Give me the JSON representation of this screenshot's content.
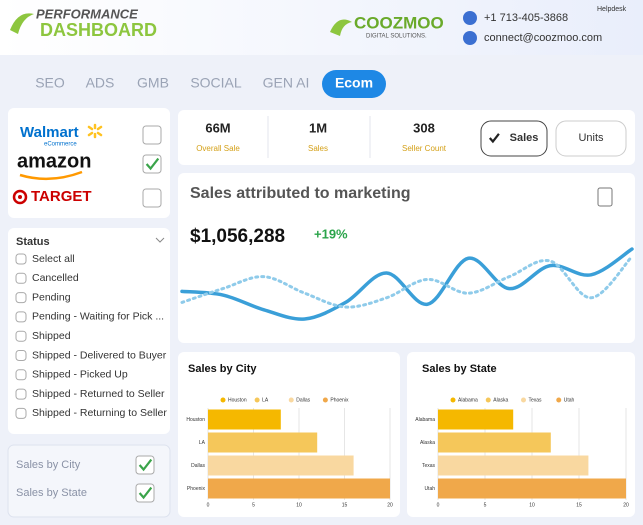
{
  "header": {
    "brand_top": "PERFORMANCE",
    "brand_bottom": "DASHBOARD",
    "company": "COOZMOO",
    "company_tagline": "DIGITAL SOLUTIONS.",
    "helpdesk": "Helpdesk",
    "phone": "+1 713-405-3868",
    "email": "connect@coozmoo.com"
  },
  "tabs": {
    "items": [
      "SEO",
      "ADS",
      "GMB",
      "SOCIAL",
      "GEN AI",
      "Ecom"
    ],
    "active": 5
  },
  "stores": [
    {
      "name": "Walmart",
      "sub": "eCommerce",
      "checked": false
    },
    {
      "name": "amazon",
      "checked": true
    },
    {
      "name": "TARGET",
      "checked": false
    }
  ],
  "status": {
    "title": "Status",
    "options": [
      "Select all",
      "Cancelled",
      "Pending",
      "Pending - Waiting for Pick ...",
      "Shipped",
      "Shipped - Delivered to Buyer",
      "Shipped - Picked Up",
      "Shipped - Returned to Seller",
      "Shipped - Returning to Seller"
    ]
  },
  "filters": [
    {
      "label": "Sales by City",
      "checked": true
    },
    {
      "label": "Sales by State",
      "checked": true
    }
  ],
  "kpis": [
    {
      "value": "66M",
      "label": "Overall Sale"
    },
    {
      "value": "1M",
      "label": "Sales"
    },
    {
      "value": "308",
      "label": "Seller Count"
    }
  ],
  "toggles": {
    "items": [
      "Sales",
      "Units"
    ],
    "active": 0
  },
  "marketing": {
    "title": "Sales attributed to marketing",
    "total": "$1,056,288",
    "change": "+19%",
    "chart": {
      "type": "line",
      "ylim": [
        0,
        100
      ],
      "series": [
        {
          "color": "#3a9fd8",
          "dashed": false,
          "values": [
            42,
            38,
            22,
            12,
            30,
            62,
            28,
            78,
            45,
            70,
            60,
            88
          ]
        },
        {
          "color": "#8fcbea",
          "dashed": true,
          "values": [
            30,
            45,
            58,
            40,
            25,
            35,
            55,
            40,
            58,
            75,
            35,
            80
          ]
        }
      ]
    }
  },
  "city_chart": {
    "type": "bar",
    "title": "Sales by City",
    "categories": [
      "Houston",
      "LA",
      "Dallas",
      "Phoenix"
    ],
    "values": [
      8,
      12,
      16,
      20
    ],
    "colors": [
      "#f5b800",
      "#f5c75a",
      "#f9d8a0",
      "#f0a84a"
    ],
    "xlim": [
      0,
      20
    ],
    "xticks": [
      0,
      5,
      10,
      15,
      20
    ],
    "grid": true
  },
  "state_chart": {
    "type": "bar",
    "title": "Sales by State",
    "categories": [
      "Alabama",
      "Alaska",
      "Texas",
      "Utah"
    ],
    "values": [
      8,
      12,
      16,
      20
    ],
    "colors": [
      "#f5b800",
      "#f5c75a",
      "#f9d8a0",
      "#f0a84a"
    ],
    "xlim": [
      0,
      20
    ],
    "xticks": [
      0,
      5,
      10,
      15,
      20
    ],
    "grid": true
  }
}
